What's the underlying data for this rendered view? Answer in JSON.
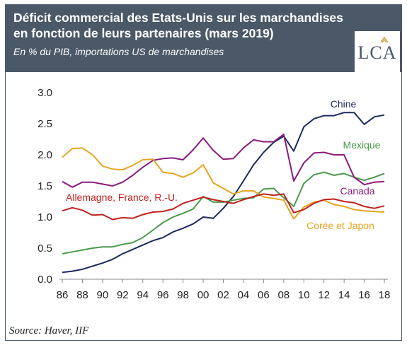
{
  "header": {
    "title": "Déficit commercial des Etats-Unis sur les marchandises en fonction de leurs partenaires (mars 2019)",
    "subtitle": "En % du PIB, importations US de marchandises",
    "logo": "LCA"
  },
  "source": "Source: Haver, IIF",
  "chart_data": {
    "type": "line",
    "ylim": [
      0,
      3.0
    ],
    "xlim": [
      1985.5,
      2018.5
    ],
    "yticks": [
      "0.0",
      "0.5",
      "1.0",
      "1.5",
      "2.0",
      "2.5",
      "3.0"
    ],
    "xticks": [
      "86",
      "88",
      "90",
      "92",
      "94",
      "96",
      "98",
      "00",
      "02",
      "04",
      "06",
      "08",
      "10",
      "12",
      "14",
      "16",
      "18"
    ],
    "grid": false,
    "series": [
      {
        "name": "Chine",
        "color": "#1c2a5e",
        "x": [
          1986,
          1987,
          1988,
          1989,
          1990,
          1991,
          1992,
          1993,
          1994,
          1995,
          1996,
          1997,
          1998,
          1999,
          2000,
          2001,
          2002,
          2003,
          2004,
          2005,
          2006,
          2007,
          2008,
          2009,
          2010,
          2011,
          2012,
          2013,
          2014,
          2015,
          2016,
          2017,
          2018
        ],
        "y": [
          0.11,
          0.13,
          0.16,
          0.21,
          0.26,
          0.32,
          0.41,
          0.48,
          0.55,
          0.62,
          0.67,
          0.76,
          0.82,
          0.89,
          1.0,
          0.98,
          1.14,
          1.33,
          1.58,
          1.84,
          2.04,
          2.2,
          2.3,
          2.06,
          2.45,
          2.58,
          2.63,
          2.63,
          2.68,
          2.68,
          2.49,
          2.61,
          2.64
        ]
      },
      {
        "name": "Mexique",
        "color": "#4a9a4a",
        "x": [
          1986,
          1987,
          1988,
          1989,
          1990,
          1991,
          1992,
          1993,
          1994,
          1995,
          1996,
          1997,
          1998,
          1999,
          2000,
          2001,
          2002,
          2003,
          2004,
          2005,
          2006,
          2007,
          2008,
          2009,
          2010,
          2011,
          2012,
          2013,
          2014,
          2015,
          2016,
          2017,
          2018
        ],
        "y": [
          0.41,
          0.44,
          0.47,
          0.5,
          0.52,
          0.52,
          0.56,
          0.59,
          0.67,
          0.79,
          0.91,
          1.0,
          1.06,
          1.13,
          1.33,
          1.24,
          1.24,
          1.27,
          1.3,
          1.31,
          1.45,
          1.46,
          1.31,
          1.17,
          1.54,
          1.68,
          1.72,
          1.67,
          1.7,
          1.64,
          1.59,
          1.64,
          1.7
        ]
      },
      {
        "name": "Canada",
        "color": "#8b1a7c",
        "x": [
          1986,
          1987,
          1988,
          1989,
          1990,
          1991,
          1992,
          1993,
          1994,
          1995,
          1996,
          1997,
          1998,
          1999,
          2000,
          2001,
          2002,
          2003,
          2004,
          2005,
          2006,
          2007,
          2008,
          2009,
          2010,
          2011,
          2012,
          2013,
          2014,
          2015,
          2016,
          2017,
          2018
        ],
        "y": [
          1.57,
          1.48,
          1.56,
          1.56,
          1.53,
          1.5,
          1.56,
          1.67,
          1.8,
          1.91,
          1.94,
          1.95,
          1.92,
          2.08,
          2.27,
          2.07,
          1.93,
          1.94,
          2.11,
          2.24,
          2.21,
          2.21,
          2.33,
          1.58,
          1.87,
          2.03,
          2.04,
          2.0,
          2.0,
          1.64,
          1.52,
          1.56,
          1.57
        ]
      },
      {
        "name": "Corée et Japon",
        "color": "#e6a521",
        "x": [
          1986,
          1987,
          1988,
          1989,
          1990,
          1991,
          1992,
          1993,
          1994,
          1995,
          1996,
          1997,
          1998,
          1999,
          2000,
          2001,
          2002,
          2003,
          2004,
          2005,
          2006,
          2007,
          2008,
          2009,
          2010,
          2011,
          2012,
          2013,
          2014,
          2015,
          2016,
          2017,
          2018
        ],
        "y": [
          1.96,
          2.1,
          2.11,
          2.0,
          1.82,
          1.77,
          1.76,
          1.83,
          1.92,
          1.93,
          1.72,
          1.7,
          1.64,
          1.71,
          1.84,
          1.55,
          1.46,
          1.37,
          1.42,
          1.42,
          1.32,
          1.3,
          1.27,
          0.97,
          1.16,
          1.24,
          1.27,
          1.2,
          1.17,
          1.12,
          1.1,
          1.09,
          1.08
        ]
      },
      {
        "name": "Allemagne, France, R.-U.",
        "color": "#c0211f",
        "x": [
          1986,
          1987,
          1988,
          1989,
          1990,
          1991,
          1992,
          1993,
          1994,
          1995,
          1996,
          1997,
          1998,
          1999,
          2000,
          2001,
          2002,
          2003,
          2004,
          2005,
          2006,
          2007,
          2008,
          2009,
          2010,
          2011,
          2012,
          2013,
          2014,
          2015,
          2016,
          2017,
          2018
        ],
        "y": [
          1.1,
          1.15,
          1.11,
          1.03,
          1.04,
          0.96,
          0.99,
          0.98,
          1.04,
          1.08,
          1.09,
          1.13,
          1.22,
          1.27,
          1.32,
          1.28,
          1.25,
          1.22,
          1.28,
          1.33,
          1.37,
          1.35,
          1.37,
          1.07,
          1.12,
          1.22,
          1.28,
          1.29,
          1.25,
          1.23,
          1.17,
          1.14,
          1.18
        ]
      }
    ]
  }
}
